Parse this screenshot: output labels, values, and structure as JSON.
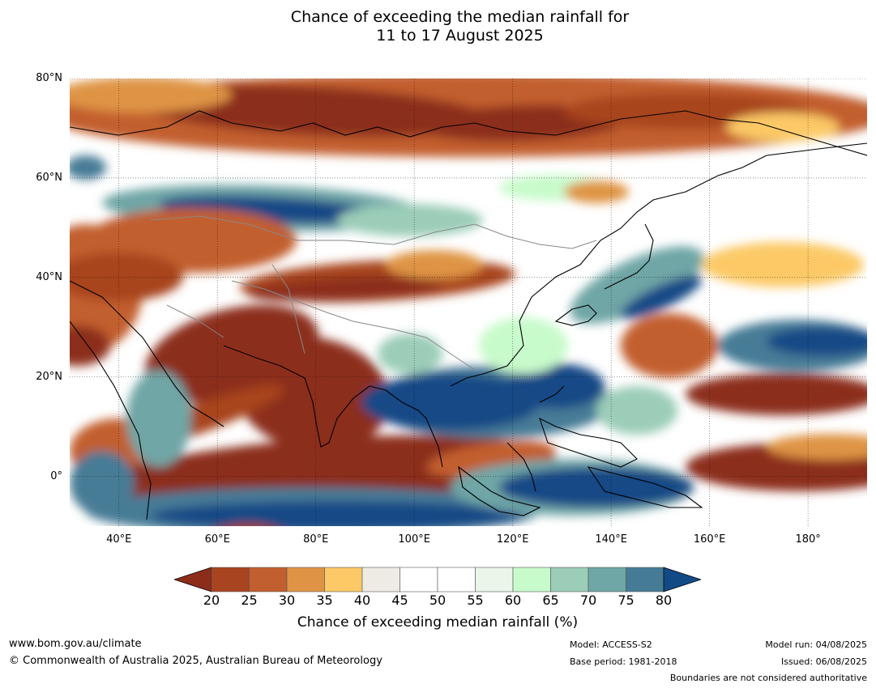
{
  "title": {
    "line1": "Chance of exceeding the median rainfall for",
    "line2": "11 to 17 August 2025"
  },
  "map": {
    "region": "Asia / Western Pacific",
    "lon_range": [
      30,
      192
    ],
    "lat_range": [
      -10,
      80
    ],
    "lat_labels": [
      {
        "value": 80,
        "label": "80°N"
      },
      {
        "value": 60,
        "label": "60°N"
      },
      {
        "value": 40,
        "label": "40°N"
      },
      {
        "value": 20,
        "label": "20°N"
      },
      {
        "value": 0,
        "label": "0°"
      }
    ],
    "lon_labels": [
      {
        "value": 40,
        "label": "40°E"
      },
      {
        "value": 60,
        "label": "60°E"
      },
      {
        "value": 80,
        "label": "80°E"
      },
      {
        "value": 100,
        "label": "100°E"
      },
      {
        "value": 120,
        "label": "120°E"
      },
      {
        "value": 140,
        "label": "140°E"
      },
      {
        "value": 160,
        "label": "160°E"
      },
      {
        "value": 180,
        "label": "180°"
      }
    ]
  },
  "colorbar": {
    "ticks": [
      "20",
      "25",
      "30",
      "35",
      "40",
      "45",
      "50",
      "55",
      "60",
      "65",
      "70",
      "75",
      "80"
    ],
    "colors": {
      "under": "#8c2d1a",
      "bins": [
        "#a8441f",
        "#c25f2e",
        "#df9445",
        "#fcc966",
        "#eeebe5",
        "#ffffff",
        "#ffffff",
        "#e9f6e9",
        "#c8fbcb",
        "#9bcdb8",
        "#6fa6a6",
        "#467b96"
      ],
      "over": "#124a86"
    },
    "title": "Chance of exceeding median rainfall (%)"
  },
  "footer": {
    "website": "www.bom.gov.au/climate",
    "copyright": "© Commonwealth of Australia 2025, Australian Bureau of Meteorology",
    "model": "Model: ACCESS-S2",
    "base_period": "Base period: 1981-2018",
    "model_run": "Model run: 04/08/2025",
    "issued": "Issued: 06/08/2025",
    "disclaimer": "Boundaries are not considered authoritative"
  }
}
